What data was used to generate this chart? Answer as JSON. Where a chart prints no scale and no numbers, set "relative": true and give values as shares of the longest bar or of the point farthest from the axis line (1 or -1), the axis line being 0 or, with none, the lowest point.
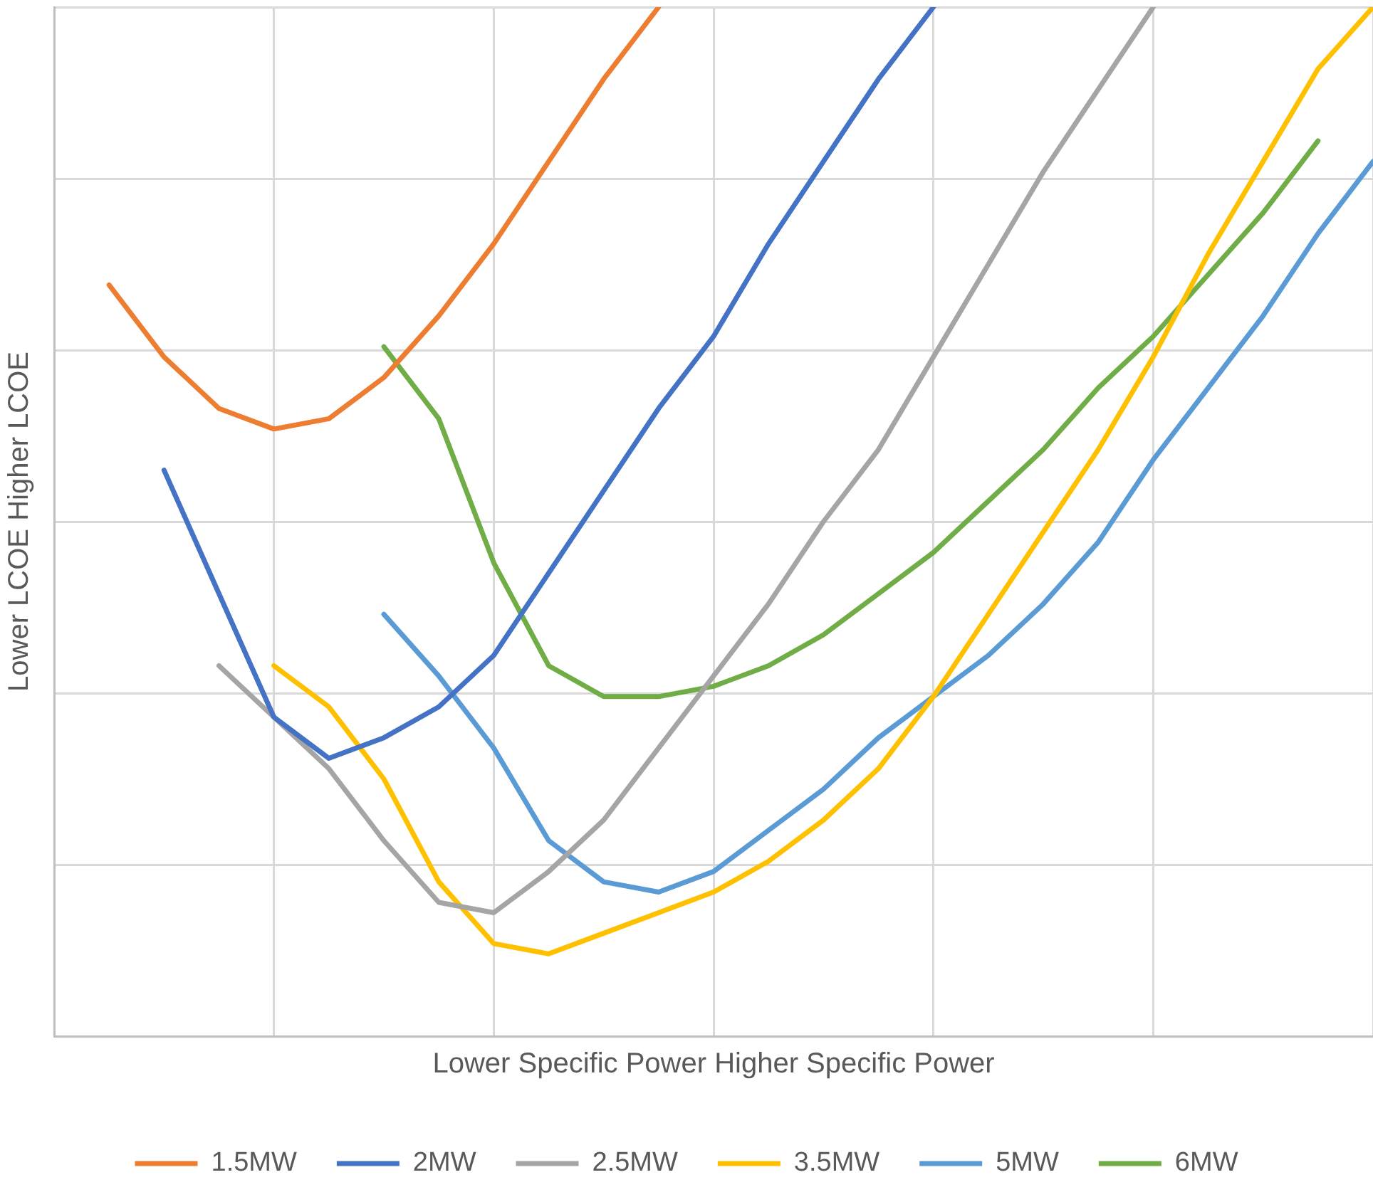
{
  "chart_data": {
    "type": "line",
    "relative": true,
    "xlabel": "Lower Specific Power Higher Specific Power",
    "ylabel": "Lower LCOE Higher LCOE",
    "tick_labels": false,
    "grid": true,
    "legend": "bottom",
    "marker": "none",
    "line_style": "solid",
    "categories": [
      null,
      null,
      null,
      null,
      null,
      null,
      null,
      null,
      null,
      null,
      null,
      null,
      null,
      null,
      null,
      null,
      null,
      null,
      null,
      null,
      null,
      null,
      null,
      null,
      null
    ],
    "series": [
      {
        "name": "1.5MW",
        "color": "#ed7d31",
        "values": [
          null,
          0.73,
          0.66,
          0.61,
          0.59,
          0.6,
          0.64,
          0.7,
          0.77,
          0.85,
          0.93,
          1.0,
          null,
          null,
          null,
          null,
          null,
          null,
          null,
          null,
          null,
          null,
          null,
          null,
          null
        ]
      },
      {
        "name": "2MW",
        "color": "#4472c4",
        "values": [
          null,
          null,
          0.55,
          0.43,
          0.31,
          0.27,
          0.29,
          0.32,
          0.37,
          0.45,
          0.53,
          0.61,
          0.68,
          0.77,
          0.85,
          0.93,
          1.0,
          null,
          null,
          null,
          null,
          null,
          null,
          null,
          null
        ]
      },
      {
        "name": "2.5MW",
        "color": "#a5a5a5",
        "values": [
          null,
          null,
          null,
          0.36,
          0.31,
          0.26,
          0.19,
          0.13,
          0.12,
          0.16,
          0.21,
          0.28,
          0.35,
          0.42,
          0.5,
          0.57,
          0.66,
          0.75,
          0.84,
          0.92,
          1.0,
          null,
          null,
          null,
          null
        ]
      },
      {
        "name": "3.5MW",
        "color": "#ffc000",
        "values": [
          null,
          null,
          null,
          null,
          0.36,
          0.32,
          0.25,
          0.15,
          0.09,
          0.08,
          0.1,
          0.12,
          0.14,
          0.17,
          0.21,
          0.26,
          0.33,
          0.41,
          0.49,
          0.57,
          0.66,
          0.76,
          0.85,
          0.94,
          1.0
        ]
      },
      {
        "name": "5MW",
        "color": "#5b9bd5",
        "values": [
          null,
          null,
          null,
          null,
          null,
          null,
          0.41,
          0.35,
          0.28,
          0.19,
          0.15,
          0.14,
          0.16,
          0.2,
          0.24,
          0.29,
          0.33,
          0.37,
          0.42,
          0.48,
          0.56,
          0.63,
          0.7,
          0.78,
          0.85
        ]
      },
      {
        "name": "6MW",
        "color": "#70ad47",
        "values": [
          null,
          null,
          null,
          null,
          null,
          null,
          0.67,
          0.6,
          0.46,
          0.36,
          0.33,
          0.33,
          0.34,
          0.36,
          0.39,
          0.43,
          0.47,
          0.52,
          0.57,
          0.63,
          0.68,
          0.74,
          0.8,
          0.87,
          null
        ]
      }
    ]
  }
}
